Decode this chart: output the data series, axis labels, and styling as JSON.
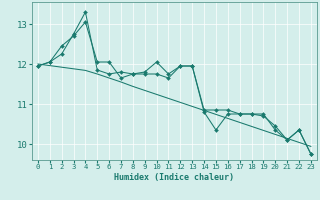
{
  "xlabel": "Humidex (Indice chaleur)",
  "bg_color": "#d4eeeb",
  "line_color": "#1a7a6e",
  "grid_color": "#ffffff",
  "tick_color": "#1a7a6e",
  "spine_color": "#5a9a90",
  "xlim": [
    -0.5,
    23.5
  ],
  "ylim": [
    9.6,
    13.55
  ],
  "yticks": [
    10,
    11,
    12,
    13
  ],
  "xticks": [
    0,
    1,
    2,
    3,
    4,
    5,
    6,
    7,
    8,
    9,
    10,
    11,
    12,
    13,
    14,
    15,
    16,
    17,
    18,
    19,
    20,
    21,
    22,
    23
  ],
  "series1": [
    11.95,
    12.05,
    12.25,
    12.75,
    13.3,
    11.85,
    11.75,
    11.8,
    11.75,
    11.8,
    12.05,
    11.75,
    11.95,
    11.95,
    10.8,
    10.35,
    10.75,
    10.75,
    10.75,
    10.7,
    10.45,
    10.1,
    10.35,
    9.75
  ],
  "series2": [
    11.95,
    12.05,
    12.45,
    12.7,
    13.05,
    12.05,
    12.05,
    11.65,
    11.75,
    11.75,
    11.75,
    11.65,
    11.95,
    11.95,
    10.85,
    10.85,
    10.85,
    10.75,
    10.75,
    10.75,
    10.35,
    10.1,
    10.35,
    9.75
  ],
  "trend": [
    12.0,
    11.96,
    11.92,
    11.88,
    11.84,
    11.75,
    11.65,
    11.55,
    11.44,
    11.34,
    11.24,
    11.14,
    11.04,
    10.94,
    10.84,
    10.74,
    10.64,
    10.54,
    10.44,
    10.34,
    10.24,
    10.14,
    10.04,
    9.94
  ],
  "xlabel_fontsize": 6.0,
  "tick_fontsize": 5.2,
  "ytick_fontsize": 6.5,
  "linewidth": 0.75,
  "markersize": 2.0
}
